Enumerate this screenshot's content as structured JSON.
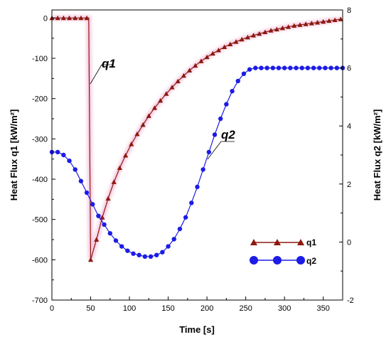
{
  "chart_data": {
    "type": "line",
    "xlabel": "Time [s]",
    "ylabel_left": "Heat Flux q1 [kW/m²]",
    "ylabel_right": "Heat Flux q2 [kW/m²]",
    "xlim": [
      0,
      375
    ],
    "ylim_left": [
      -700,
      20
    ],
    "ylim_right": [
      -2,
      8
    ],
    "x_ticks": [
      "0",
      "50",
      "100",
      "150",
      "200",
      "250",
      "300",
      "350"
    ],
    "y_left_ticks": [
      "0",
      "-100",
      "-200",
      "-300",
      "-400",
      "-500",
      "-600",
      "-700"
    ],
    "y_right_ticks": [
      "-2",
      "0",
      "2",
      "4",
      "6",
      "8"
    ],
    "legend_position": "lower-right",
    "annotations": [
      "q1",
      "q2"
    ],
    "series": [
      {
        "name": "q1",
        "axis": "left",
        "color": "#8b1a10",
        "marker": "triangle",
        "x": [
          0,
          7.5,
          15,
          22.5,
          30,
          37.5,
          45,
          47.5,
          50,
          57.5,
          65,
          72.5,
          80,
          87.5,
          95,
          102.5,
          110,
          117.5,
          125,
          132.5,
          140,
          147.5,
          155,
          162.5,
          170,
          177.5,
          185,
          192.5,
          200,
          207.5,
          215,
          222.5,
          230,
          237.5,
          245,
          252.5,
          260,
          267.5,
          275,
          282.5,
          290,
          297.5,
          305,
          312.5,
          320,
          327.5,
          335,
          342.5,
          350,
          357.5,
          365,
          372.5
        ],
        "values": [
          0,
          0,
          0,
          0,
          0,
          0,
          0,
          0,
          -600,
          -550,
          -495,
          -448,
          -407,
          -372,
          -341,
          -313,
          -288,
          -265,
          -243,
          -223,
          -205,
          -188,
          -172,
          -157,
          -143,
          -130,
          -118,
          -107,
          -97,
          -88,
          -80,
          -72,
          -65,
          -59,
          -53,
          -48,
          -43,
          -39,
          -35,
          -31,
          -28,
          -25,
          -22,
          -19,
          -17,
          -15,
          -13,
          -11,
          -9,
          -7,
          -5,
          -3
        ]
      },
      {
        "name": "q2",
        "axis": "right",
        "color": "#1c1ce6",
        "marker": "circle",
        "x": [
          0,
          7.5,
          15,
          22.5,
          30,
          37.5,
          45,
          52.5,
          60,
          67.5,
          75,
          82.5,
          90,
          97.5,
          105,
          112.5,
          120,
          127.5,
          135,
          142.5,
          150,
          157.5,
          165,
          172.5,
          180,
          187.5,
          195,
          202.5,
          210,
          217.5,
          225,
          232.5,
          240,
          247.5,
          255,
          262.5,
          270,
          277.5,
          285,
          292.5,
          300,
          307.5,
          315,
          322.5,
          330,
          337.5,
          345,
          352.5,
          360,
          367.5,
          375
        ],
        "values": [
          3.1,
          3.1,
          3.0,
          2.8,
          2.5,
          2.1,
          1.7,
          1.3,
          0.9,
          0.6,
          0.3,
          0.05,
          -0.15,
          -0.3,
          -0.4,
          -0.45,
          -0.5,
          -0.5,
          -0.45,
          -0.35,
          -0.15,
          0.1,
          0.45,
          0.85,
          1.35,
          1.9,
          2.5,
          3.1,
          3.7,
          4.25,
          4.75,
          5.2,
          5.55,
          5.8,
          5.95,
          6.0,
          6.0,
          6.0,
          6.0,
          6.0,
          6.0,
          6.0,
          6.0,
          6.0,
          6.0,
          6.0,
          6.0,
          6.0,
          6.0,
          6.0,
          6.0
        ]
      }
    ]
  }
}
